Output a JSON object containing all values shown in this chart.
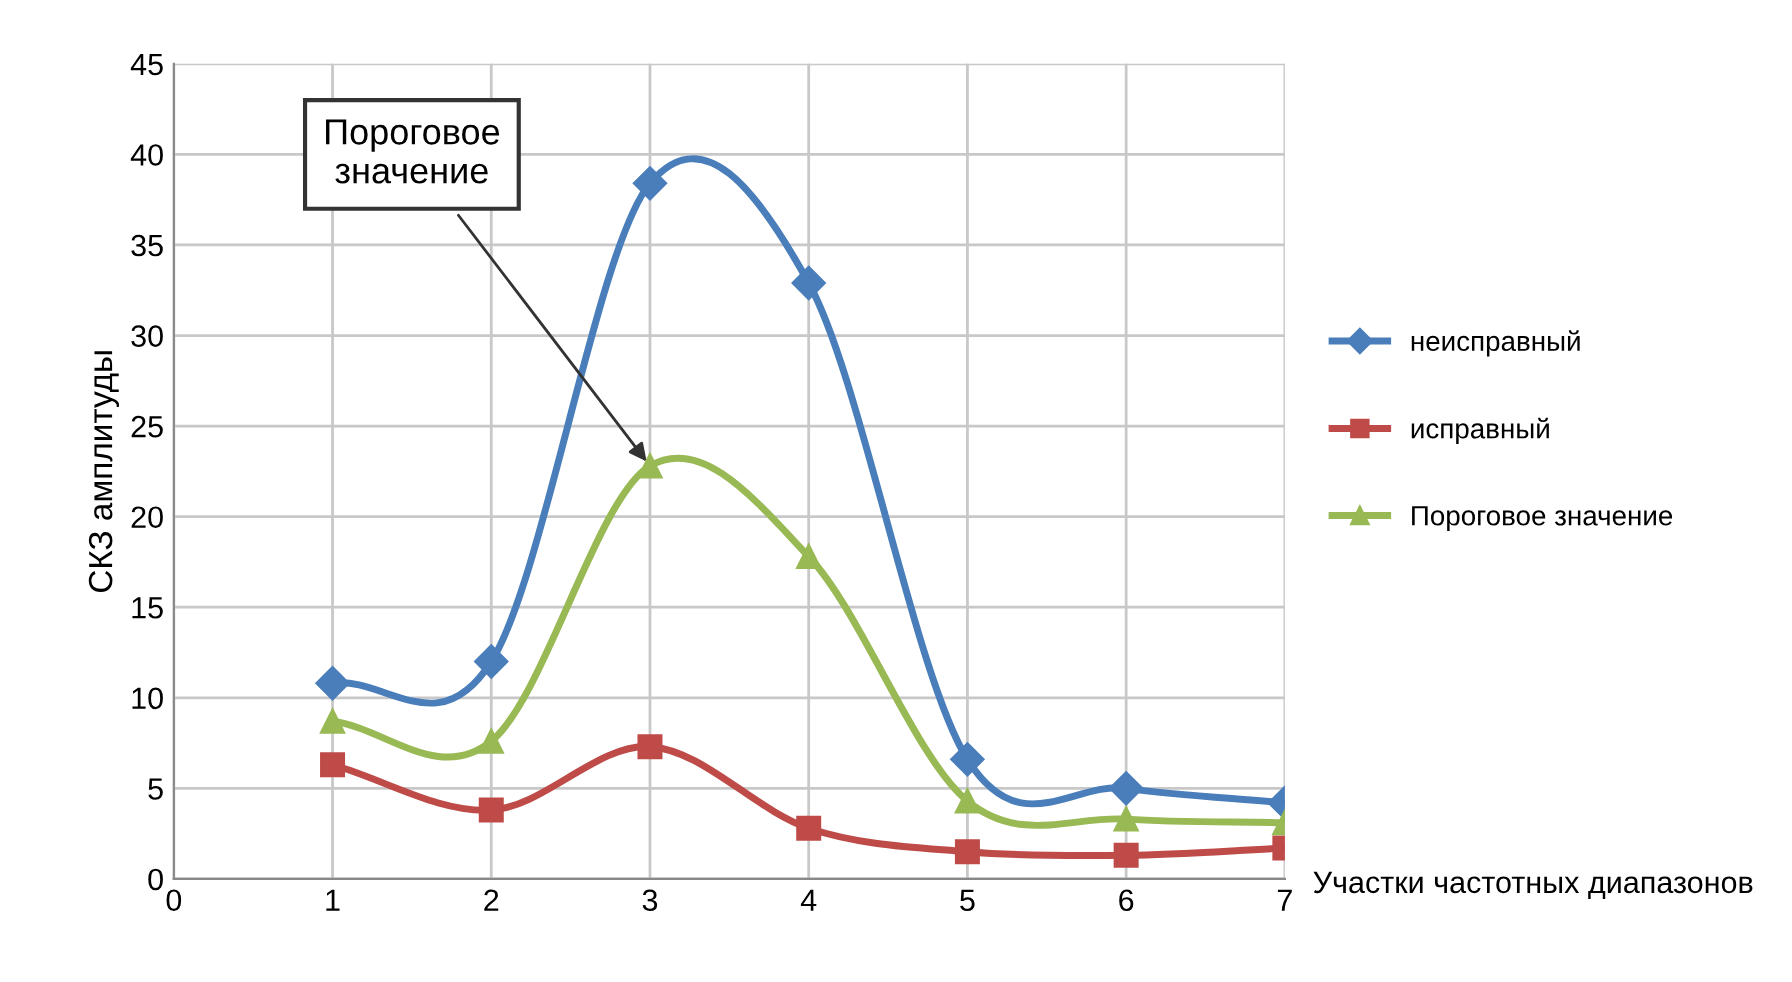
{
  "chart_data": {
    "type": "line",
    "xlabel": "Участки частотных диапазонов",
    "ylabel": "СКЗ амплитуды",
    "x": [
      1,
      2,
      3,
      4,
      5,
      6,
      7
    ],
    "series": [
      {
        "name": "неисправный",
        "color": "#4a7ebb",
        "marker": "diamond",
        "values": [
          10.8,
          12,
          38.4,
          32.9,
          6.6,
          5.0,
          4.2
        ]
      },
      {
        "name": "исправный",
        "color": "#be4b48",
        "marker": "square",
        "values": [
          6.3,
          3.8,
          7.3,
          2.8,
          1.5,
          1.3,
          1.7
        ]
      },
      {
        "name": "Пороговое значение",
        "color": "#98b954",
        "marker": "triangle",
        "values": [
          8.7,
          7.6,
          22.8,
          17.8,
          4.3,
          3.3,
          3.1
        ]
      }
    ],
    "annotations": [
      {
        "text": "Пороговое\nзначение",
        "x": 3,
        "y": 22.8
      }
    ],
    "xlim": [
      0,
      7
    ],
    "xticks": [
      0,
      1,
      2,
      3,
      4,
      5,
      6,
      7
    ],
    "ylim": [
      0,
      45
    ],
    "yticks": [
      0,
      5,
      10,
      15,
      20,
      25,
      30,
      35,
      40,
      45
    ],
    "grid": true,
    "legend": "right",
    "line_style": "solid"
  }
}
